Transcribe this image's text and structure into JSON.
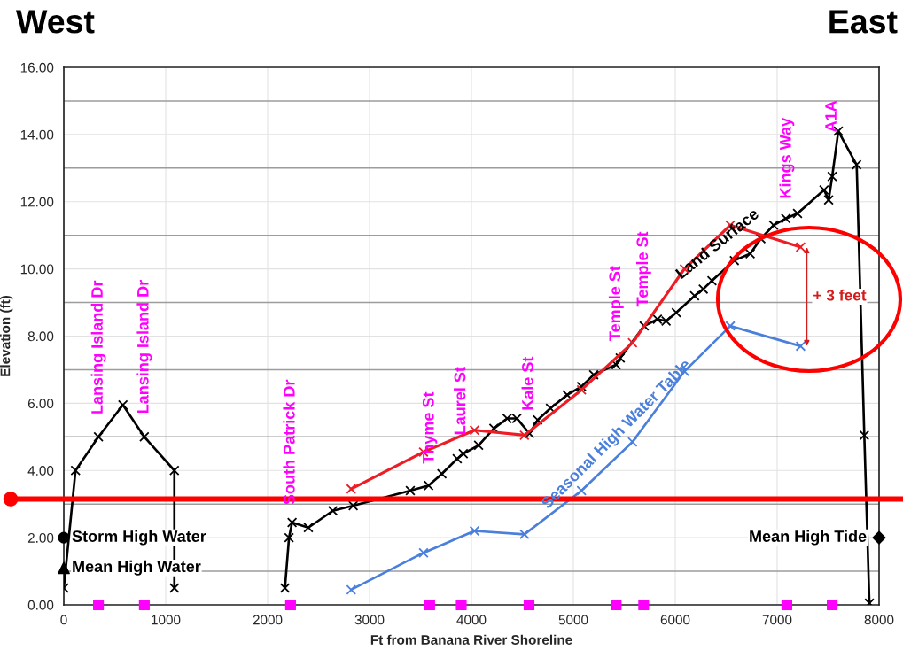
{
  "chart_data": {
    "type": "line",
    "marker": "cross",
    "line_style": "solid",
    "xlabel": "Ft from Banana River Shoreline",
    "ylabel": "Elevation (ft)",
    "xlim": [
      0,
      8000
    ],
    "xticks": [
      0,
      1000,
      2000,
      3000,
      4000,
      5000,
      6000,
      7000,
      8000
    ],
    "ylim": [
      0,
      16
    ],
    "yticks": [
      {
        "value": 0,
        "label": "0.00"
      },
      {
        "value": 1,
        "label": null
      },
      {
        "value": 2,
        "label": "2.00"
      },
      {
        "value": 3,
        "label": null
      },
      {
        "value": 4,
        "label": "4.00"
      },
      {
        "value": 5,
        "label": null
      },
      {
        "value": 6,
        "label": "6.00"
      },
      {
        "value": 7,
        "label": null
      },
      {
        "value": 8,
        "label": "8.00"
      },
      {
        "value": 9,
        "label": null
      },
      {
        "value": 10,
        "label": "10.00"
      },
      {
        "value": 11,
        "label": null
      },
      {
        "value": 12,
        "label": "12.00"
      },
      {
        "value": 13,
        "label": null
      },
      {
        "value": 14,
        "label": "14.00"
      },
      {
        "value": 15,
        "label": null
      },
      {
        "value": 16,
        "label": "16.00"
      }
    ],
    "grid": true,
    "series": [
      {
        "name": "Land Surface",
        "color": "#000000",
        "x": [
          0,
          115,
          340,
          580,
          790,
          1085,
          1085,
          1600,
          2170,
          2210,
          2240,
          2400,
          2640,
          2840,
          3400,
          3580,
          3710,
          3860,
          3920,
          4070,
          4220,
          4350,
          4445,
          4570,
          4650,
          4775,
          4940,
          5080,
          5200,
          5420,
          5460,
          5695,
          5825,
          5910,
          6010,
          6190,
          6275,
          6360,
          6580,
          6735,
          6840,
          6965,
          7085,
          7200,
          7460,
          7505,
          7540,
          7600,
          7780,
          7855,
          7905
        ],
        "values": [
          0.5,
          4.0,
          5.0,
          5.95,
          5.0,
          4.0,
          0.5,
          null,
          0.5,
          2.0,
          2.45,
          2.3,
          2.8,
          2.95,
          3.4,
          3.55,
          3.9,
          4.35,
          4.5,
          4.75,
          5.25,
          5.55,
          5.55,
          5.1,
          5.5,
          5.85,
          6.25,
          6.5,
          6.85,
          7.15,
          7.35,
          8.3,
          8.5,
          8.45,
          8.7,
          9.2,
          9.4,
          9.65,
          10.25,
          10.45,
          10.9,
          11.3,
          11.5,
          11.65,
          12.35,
          12.05,
          12.75,
          14.1,
          13.1,
          5.05,
          0.05
        ]
      },
      {
        "color": "#ee1c24",
        "x": [
          2820,
          3530,
          4030,
          4520,
          5080,
          5580,
          6090,
          6540,
          7230
        ],
        "values": [
          3.45,
          4.55,
          5.2,
          5.05,
          6.4,
          7.8,
          10.0,
          11.3,
          10.65
        ]
      },
      {
        "name": "Seasonal High Water Table",
        "color": "#4a7fdc",
        "x": [
          2820,
          3530,
          4030,
          4520,
          5080,
          5580,
          6090,
          6540,
          7230
        ],
        "values": [
          0.45,
          1.55,
          2.2,
          2.1,
          3.4,
          4.85,
          6.95,
          8.3,
          7.7
        ]
      },
      {
        "type": "scatter",
        "marker": "square",
        "color": "#ff00ff",
        "x": [
          340,
          790,
          2225,
          3590,
          3900,
          4565,
          5420,
          5690,
          7095,
          7540
        ],
        "values": [
          0,
          0,
          0,
          0,
          0,
          0,
          0,
          0,
          0,
          0
        ]
      },
      {
        "type": "scatter",
        "marker": "circle",
        "name": "Storm High Water",
        "color": "#000000",
        "x": [
          0
        ],
        "values": [
          2.0
        ]
      },
      {
        "type": "scatter",
        "marker": "triangle",
        "name": "Mean High Water",
        "color": "#000000",
        "x": [
          0
        ],
        "values": [
          1.1
        ]
      },
      {
        "type": "scatter",
        "marker": "diamond",
        "name": "Mean High Tide",
        "color": "#000000",
        "x": [
          8000
        ],
        "values": [
          2.0
        ]
      }
    ],
    "ref_lines": [
      {
        "axis": "y",
        "value": 3.15,
        "color": "#ff0000"
      }
    ],
    "annotations": [
      "West",
      "East",
      "Lansing Island Dr",
      "Lansing Island Dr",
      "South Patrick Dr",
      "Thyme St",
      "Laurel St",
      "Kale St",
      "Temple St",
      "Temple St",
      "Kings Way",
      "A1A",
      "+ 3 feet"
    ]
  }
}
